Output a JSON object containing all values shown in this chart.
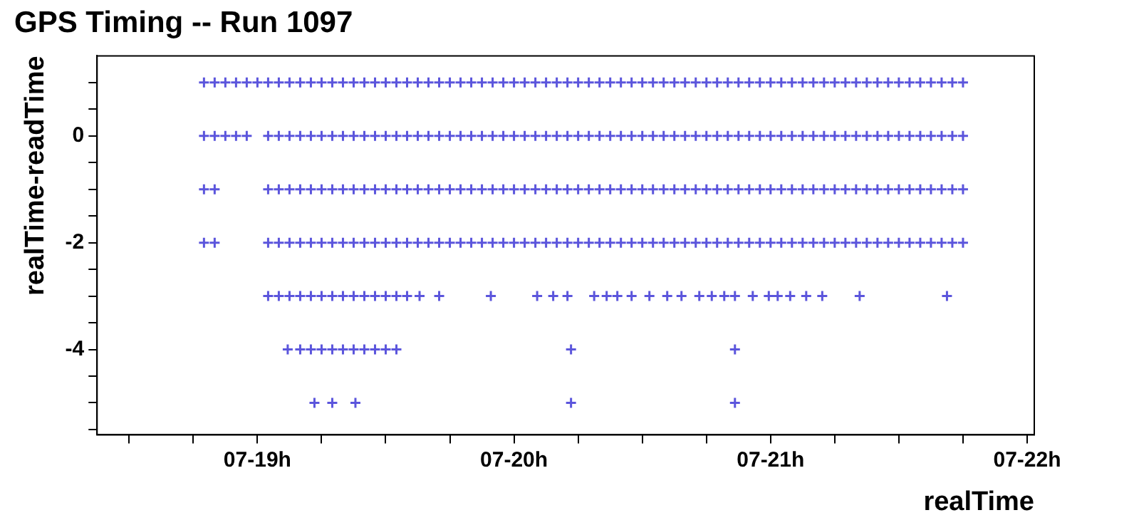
{
  "chart_data": {
    "type": "scatter",
    "title": "GPS Timing -- Run 1097",
    "xlabel": "realTime",
    "ylabel": "realTime-readTime",
    "xlim": [
      "--07-18T09:00",
      "--07-22T00:40"
    ],
    "ylim": [
      -5.6,
      1.5
    ],
    "xticks": [
      {
        "value": "--07-18T12:00",
        "label": null
      },
      {
        "value": "--07-18T18:00",
        "label": null
      },
      {
        "value": "--07-19T00:00",
        "label": "07-19h"
      },
      {
        "value": "--07-19T06:00",
        "label": null
      },
      {
        "value": "--07-19T12:00",
        "label": null
      },
      {
        "value": "--07-19T18:00",
        "label": null
      },
      {
        "value": "--07-20T00:00",
        "label": "07-20h"
      },
      {
        "value": "--07-20T06:00",
        "label": null
      },
      {
        "value": "--07-20T12:00",
        "label": null
      },
      {
        "value": "--07-20T18:00",
        "label": null
      },
      {
        "value": "--07-21T00:00",
        "label": "07-21h"
      },
      {
        "value": "--07-21T06:00",
        "label": null
      },
      {
        "value": "--07-21T12:00",
        "label": null
      },
      {
        "value": "--07-21T18:00",
        "label": null
      },
      {
        "value": "--07-22T00:00",
        "label": "07-22h"
      }
    ],
    "yticks": [
      {
        "value": -5.5,
        "label": null
      },
      {
        "value": -5,
        "label": null
      },
      {
        "value": -4.5,
        "label": null
      },
      -4,
      {
        "value": -3.5,
        "label": null
      },
      {
        "value": -3,
        "label": null
      },
      {
        "value": -2.5,
        "label": null
      },
      -2,
      {
        "value": -1.5,
        "label": null
      },
      {
        "value": -1,
        "label": null
      },
      {
        "value": -0.5,
        "label": null
      },
      0,
      {
        "value": 0.5,
        "label": null
      },
      {
        "value": 1,
        "label": null
      }
    ],
    "grid": false,
    "marker": "cross",
    "series": [
      {
        "color": "#5b55dc",
        "x": [
          "--07-18T19:00",
          "--07-18T20:00",
          "--07-18T21:00",
          "--07-18T22:00",
          "--07-18T23:00",
          "--07-19T00:00",
          "--07-19T01:00",
          "--07-19T02:00",
          "--07-19T03:00",
          "--07-19T04:00",
          "--07-19T05:00",
          "--07-19T06:00",
          "--07-19T07:00",
          "--07-19T08:00",
          "--07-19T09:00",
          "--07-19T10:00",
          "--07-19T11:00",
          "--07-19T12:00",
          "--07-19T13:00",
          "--07-19T14:00",
          "--07-19T15:00",
          "--07-19T16:00",
          "--07-19T17:00",
          "--07-19T18:00",
          "--07-19T19:00",
          "--07-19T20:00",
          "--07-19T21:00",
          "--07-19T22:00",
          "--07-19T23:00",
          "--07-20T00:00",
          "--07-20T01:00",
          "--07-20T02:00",
          "--07-20T03:00",
          "--07-20T04:00",
          "--07-20T05:00",
          "--07-20T06:00",
          "--07-20T07:00",
          "--07-20T08:00",
          "--07-20T09:00",
          "--07-20T10:00",
          "--07-20T11:00",
          "--07-20T12:00",
          "--07-20T13:00",
          "--07-20T14:00",
          "--07-20T15:00",
          "--07-20T16:00",
          "--07-20T17:00",
          "--07-20T18:00",
          "--07-20T19:00",
          "--07-20T20:00",
          "--07-20T21:00",
          "--07-20T22:00",
          "--07-20T23:00",
          "--07-21T00:00",
          "--07-21T01:00",
          "--07-21T02:00",
          "--07-21T03:00",
          "--07-21T04:00",
          "--07-21T05:00",
          "--07-21T06:00",
          "--07-21T07:00",
          "--07-21T08:00",
          "--07-21T09:00",
          "--07-21T10:00",
          "--07-21T11:00",
          "--07-21T12:00",
          "--07-21T13:00",
          "--07-21T14:00",
          "--07-21T15:00",
          "--07-21T16:00",
          "--07-21T17:00",
          "--07-21T18:00"
        ],
        "values": [
          1,
          1,
          1,
          1,
          1,
          1,
          1,
          1,
          1,
          1,
          1,
          1,
          1,
          1,
          1,
          1,
          1,
          1,
          1,
          1,
          1,
          1,
          1,
          1,
          1,
          1,
          1,
          1,
          1,
          1,
          1,
          1,
          1,
          1,
          1,
          1,
          1,
          1,
          1,
          1,
          1,
          1,
          1,
          1,
          1,
          1,
          1,
          1,
          1,
          1,
          1,
          1,
          1,
          1,
          1,
          1,
          1,
          1,
          1,
          1,
          1,
          1,
          1,
          1,
          1,
          1,
          1,
          1,
          1,
          1,
          1,
          1
        ]
      },
      {
        "color": "#5b55dc",
        "x": [
          "--07-18T19:00",
          "--07-18T20:00",
          "--07-18T21:00",
          "--07-18T22:00",
          "--07-18T23:00",
          "--07-19T01:00",
          "--07-19T02:00",
          "--07-19T03:00",
          "--07-19T04:00",
          "--07-19T05:00",
          "--07-19T06:00",
          "--07-19T07:00",
          "--07-19T08:00",
          "--07-19T09:00",
          "--07-19T10:00",
          "--07-19T11:00",
          "--07-19T12:00",
          "--07-19T13:00",
          "--07-19T14:00",
          "--07-19T15:00",
          "--07-19T16:00",
          "--07-19T17:00",
          "--07-19T18:00",
          "--07-19T19:00",
          "--07-19T20:00",
          "--07-19T21:00",
          "--07-19T22:00",
          "--07-19T23:00",
          "--07-20T00:00",
          "--07-20T01:00",
          "--07-20T02:00",
          "--07-20T03:00",
          "--07-20T04:00",
          "--07-20T05:00",
          "--07-20T06:00",
          "--07-20T07:00",
          "--07-20T08:00",
          "--07-20T09:00",
          "--07-20T10:00",
          "--07-20T11:00",
          "--07-20T12:00",
          "--07-20T13:00",
          "--07-20T14:00",
          "--07-20T15:00",
          "--07-20T16:00",
          "--07-20T17:00",
          "--07-20T18:00",
          "--07-20T19:00",
          "--07-20T20:00",
          "--07-20T21:00",
          "--07-20T22:00",
          "--07-20T23:00",
          "--07-21T00:00",
          "--07-21T01:00",
          "--07-21T02:00",
          "--07-21T03:00",
          "--07-21T04:00",
          "--07-21T05:00",
          "--07-21T06:00",
          "--07-21T07:00",
          "--07-21T08:00",
          "--07-21T09:00",
          "--07-21T10:00",
          "--07-21T11:00",
          "--07-21T12:00",
          "--07-21T13:00",
          "--07-21T14:00",
          "--07-21T15:00",
          "--07-21T16:00",
          "--07-21T17:00",
          "--07-21T18:00"
        ],
        "values": [
          0,
          0,
          0,
          0,
          0,
          0,
          0,
          0,
          0,
          0,
          0,
          0,
          0,
          0,
          0,
          0,
          0,
          0,
          0,
          0,
          0,
          0,
          0,
          0,
          0,
          0,
          0,
          0,
          0,
          0,
          0,
          0,
          0,
          0,
          0,
          0,
          0,
          0,
          0,
          0,
          0,
          0,
          0,
          0,
          0,
          0,
          0,
          0,
          0,
          0,
          0,
          0,
          0,
          0,
          0,
          0,
          0,
          0,
          0,
          0,
          0,
          0,
          0,
          0,
          0,
          0,
          0,
          0,
          0,
          0,
          0
        ]
      },
      {
        "color": "#5b55dc",
        "x": [
          "--07-18T19:00",
          "--07-18T20:00",
          "--07-19T01:00",
          "--07-19T02:00",
          "--07-19T03:00",
          "--07-19T04:00",
          "--07-19T05:00",
          "--07-19T06:00",
          "--07-19T07:00",
          "--07-19T08:00",
          "--07-19T09:00",
          "--07-19T10:00",
          "--07-19T11:00",
          "--07-19T12:00",
          "--07-19T13:00",
          "--07-19T14:00",
          "--07-19T15:00",
          "--07-19T16:00",
          "--07-19T17:00",
          "--07-19T18:00",
          "--07-19T19:00",
          "--07-19T20:00",
          "--07-19T21:00",
          "--07-19T22:00",
          "--07-19T23:00",
          "--07-20T00:00",
          "--07-20T01:00",
          "--07-20T02:00",
          "--07-20T03:00",
          "--07-20T04:00",
          "--07-20T05:00",
          "--07-20T06:00",
          "--07-20T07:00",
          "--07-20T08:00",
          "--07-20T09:00",
          "--07-20T10:00",
          "--07-20T11:00",
          "--07-20T12:00",
          "--07-20T13:00",
          "--07-20T14:00",
          "--07-20T15:00",
          "--07-20T16:00",
          "--07-20T17:00",
          "--07-20T18:00",
          "--07-20T19:00",
          "--07-20T20:00",
          "--07-20T21:00",
          "--07-20T22:00",
          "--07-20T23:00",
          "--07-21T00:00",
          "--07-21T01:00",
          "--07-21T02:00",
          "--07-21T03:00",
          "--07-21T04:00",
          "--07-21T05:00",
          "--07-21T06:00",
          "--07-21T07:00",
          "--07-21T08:00",
          "--07-21T09:00",
          "--07-21T10:00",
          "--07-21T11:00",
          "--07-21T12:00",
          "--07-21T13:00",
          "--07-21T14:00",
          "--07-21T15:00",
          "--07-21T16:00",
          "--07-21T17:00",
          "--07-21T18:00"
        ],
        "values": [
          -1,
          -1,
          -1,
          -1,
          -1,
          -1,
          -1,
          -1,
          -1,
          -1,
          -1,
          -1,
          -1,
          -1,
          -1,
          -1,
          -1,
          -1,
          -1,
          -1,
          -1,
          -1,
          -1,
          -1,
          -1,
          -1,
          -1,
          -1,
          -1,
          -1,
          -1,
          -1,
          -1,
          -1,
          -1,
          -1,
          -1,
          -1,
          -1,
          -1,
          -1,
          -1,
          -1,
          -1,
          -1,
          -1,
          -1,
          -1,
          -1,
          -1,
          -1,
          -1,
          -1,
          -1,
          -1,
          -1,
          -1,
          -1,
          -1,
          -1,
          -1,
          -1,
          -1,
          -1,
          -1,
          -1,
          -1,
          -1
        ]
      },
      {
        "color": "#5b55dc",
        "x": [
          "--07-18T19:00",
          "--07-18T20:00",
          "--07-19T01:00",
          "--07-19T02:00",
          "--07-19T03:00",
          "--07-19T04:00",
          "--07-19T05:00",
          "--07-19T06:00",
          "--07-19T07:00",
          "--07-19T08:00",
          "--07-19T09:00",
          "--07-19T10:00",
          "--07-19T11:00",
          "--07-19T12:00",
          "--07-19T13:00",
          "--07-19T14:00",
          "--07-19T15:00",
          "--07-19T16:00",
          "--07-19T17:00",
          "--07-19T18:00",
          "--07-19T19:00",
          "--07-19T20:00",
          "--07-19T21:00",
          "--07-19T22:00",
          "--07-19T23:00",
          "--07-20T00:00",
          "--07-20T01:00",
          "--07-20T02:00",
          "--07-20T03:00",
          "--07-20T04:00",
          "--07-20T05:00",
          "--07-20T06:00",
          "--07-20T07:00",
          "--07-20T08:00",
          "--07-20T09:00",
          "--07-20T10:00",
          "--07-20T11:00",
          "--07-20T12:00",
          "--07-20T13:00",
          "--07-20T14:00",
          "--07-20T15:00",
          "--07-20T16:00",
          "--07-20T17:00",
          "--07-20T18:00",
          "--07-20T19:00",
          "--07-20T20:00",
          "--07-20T21:00",
          "--07-20T22:00",
          "--07-20T23:00",
          "--07-21T00:00",
          "--07-21T01:00",
          "--07-21T02:00",
          "--07-21T03:00",
          "--07-21T04:00",
          "--07-21T05:00",
          "--07-21T06:00",
          "--07-21T07:00",
          "--07-21T08:00",
          "--07-21T09:00",
          "--07-21T10:00",
          "--07-21T11:00",
          "--07-21T12:00",
          "--07-21T13:00",
          "--07-21T14:00",
          "--07-21T15:00",
          "--07-21T16:00",
          "--07-21T17:00",
          "--07-21T18:00"
        ],
        "values": [
          -2,
          -2,
          -2,
          -2,
          -2,
          -2,
          -2,
          -2,
          -2,
          -2,
          -2,
          -2,
          -2,
          -2,
          -2,
          -2,
          -2,
          -2,
          -2,
          -2,
          -2,
          -2,
          -2,
          -2,
          -2,
          -2,
          -2,
          -2,
          -2,
          -2,
          -2,
          -2,
          -2,
          -2,
          -2,
          -2,
          -2,
          -2,
          -2,
          -2,
          -2,
          -2,
          -2,
          -2,
          -2,
          -2,
          -2,
          -2,
          -2,
          -2,
          -2,
          -2,
          -2,
          -2,
          -2,
          -2,
          -2,
          -2,
          -2,
          -2,
          -2,
          -2,
          -2,
          -2,
          -2,
          -2,
          -2,
          -2
        ]
      },
      {
        "color": "#5b55dc",
        "x": [
          "--07-19T01:00",
          "--07-19T02:00",
          "--07-19T03:00",
          "--07-19T04:00",
          "--07-19T05:00",
          "--07-19T06:00",
          "--07-19T07:00",
          "--07-19T08:00",
          "--07-19T09:00",
          "--07-19T10:00",
          "--07-19T11:00",
          "--07-19T12:00",
          "--07-19T13:00",
          "--07-19T14:00",
          "--07-19T15:10",
          "--07-19T17:00",
          "--07-19T21:50",
          "--07-20T02:10",
          "--07-20T03:40",
          "--07-20T05:00",
          "--07-20T07:30",
          "--07-20T08:40",
          "--07-20T09:40",
          "--07-20T11:00",
          "--07-20T12:40",
          "--07-20T14:20",
          "--07-20T15:40",
          "--07-20T17:20",
          "--07-20T18:30",
          "--07-20T19:40",
          "--07-20T20:40",
          "--07-20T22:20",
          "--07-20T23:50",
          "--07-21T00:40",
          "--07-21T01:50",
          "--07-21T03:20",
          "--07-21T04:50",
          "--07-21T08:20",
          "--07-21T16:30"
        ],
        "values": [
          -3,
          -3,
          -3,
          -3,
          -3,
          -3,
          -3,
          -3,
          -3,
          -3,
          -3,
          -3,
          -3,
          -3,
          -3,
          -3,
          -3,
          -3,
          -3,
          -3,
          -3,
          -3,
          -3,
          -3,
          -3,
          -3,
          -3,
          -3,
          -3,
          -3,
          -3,
          -3,
          -3,
          -3,
          -3,
          -3,
          -3,
          -3,
          -3
        ]
      },
      {
        "color": "#5b55dc",
        "x": [
          "--07-19T02:50",
          "--07-19T04:00",
          "--07-19T05:00",
          "--07-19T06:00",
          "--07-19T07:00",
          "--07-19T08:00",
          "--07-19T09:00",
          "--07-19T10:00",
          "--07-19T11:00",
          "--07-19T12:00",
          "--07-19T13:00",
          "--07-20T05:20",
          "--07-20T20:40"
        ],
        "values": [
          -4,
          -4,
          -4,
          -4,
          -4,
          -4,
          -4,
          -4,
          -4,
          -4,
          -4,
          -4,
          -4
        ]
      },
      {
        "color": "#5b55dc",
        "x": [
          "--07-19T05:20",
          "--07-19T07:00",
          "--07-19T09:10",
          "--07-20T05:20",
          "--07-20T20:40"
        ],
        "values": [
          -5,
          -5,
          -5,
          -5,
          -5
        ]
      }
    ]
  }
}
